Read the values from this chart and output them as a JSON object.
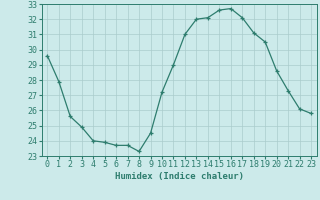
{
  "x": [
    0,
    1,
    2,
    3,
    4,
    5,
    6,
    7,
    8,
    9,
    10,
    11,
    12,
    13,
    14,
    15,
    16,
    17,
    18,
    19,
    20,
    21,
    22,
    23
  ],
  "y": [
    29.6,
    27.9,
    25.6,
    24.9,
    24.0,
    23.9,
    23.7,
    23.7,
    23.3,
    24.5,
    27.2,
    29.0,
    31.0,
    32.0,
    32.1,
    32.6,
    32.7,
    32.1,
    31.1,
    30.5,
    28.6,
    27.3,
    26.1,
    25.8
  ],
  "line_color": "#2e7d6e",
  "bg_color": "#cceaea",
  "grid_color": "#aacccc",
  "xlabel": "Humidex (Indice chaleur)",
  "ylim": [
    23,
    33
  ],
  "xlim_min": -0.5,
  "xlim_max": 23.5,
  "yticks": [
    23,
    24,
    25,
    26,
    27,
    28,
    29,
    30,
    31,
    32,
    33
  ],
  "xticks": [
    0,
    1,
    2,
    3,
    4,
    5,
    6,
    7,
    8,
    9,
    10,
    11,
    12,
    13,
    14,
    15,
    16,
    17,
    18,
    19,
    20,
    21,
    22,
    23
  ],
  "label_fontsize": 6.5,
  "tick_fontsize": 6.0
}
